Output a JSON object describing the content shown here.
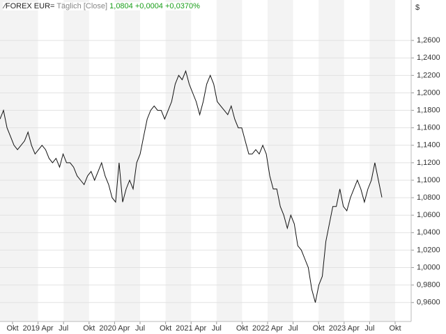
{
  "chart_data": {
    "type": "line",
    "title": "FOREX EUR=",
    "subtitle": "Täglich [Close]",
    "last_value": "1,0804",
    "change": "+0,0004",
    "change_pct": "+0,0370%",
    "y_unit": "$",
    "xtick_labels": [
      "Okt",
      "2019 Apr",
      "Jul",
      "Okt",
      "2020 Apr",
      "Jul",
      "Okt",
      "2021 Apr",
      "Jul",
      "Okt",
      "2022 Apr",
      "Jul",
      "Okt",
      "2023 Apr",
      "Jul",
      "Okt"
    ],
    "ylim": [
      0.9383,
      1.3063
    ],
    "yticks": [
      {
        "value": 0.96,
        "label": "0,9600"
      },
      {
        "value": 0.98,
        "label": "0,9800"
      },
      {
        "value": 1.0,
        "label": "1,0000"
      },
      {
        "value": 1.02,
        "label": "1,0200"
      },
      {
        "value": 1.04,
        "label": "1,0400"
      },
      {
        "value": 1.06,
        "label": "1,0600"
      },
      {
        "value": 1.08,
        "label": "1,0800"
      },
      {
        "value": 1.1,
        "label": "1,1000"
      },
      {
        "value": 1.12,
        "label": "1,1200"
      },
      {
        "value": 1.14,
        "label": "1,1400"
      },
      {
        "value": 1.16,
        "label": "1,1600"
      },
      {
        "value": 1.18,
        "label": "1,1800"
      },
      {
        "value": 1.2,
        "label": "1,2000"
      },
      {
        "value": 1.22,
        "label": "1,2200"
      },
      {
        "value": 1.24,
        "label": "1,2400"
      },
      {
        "value": 1.26,
        "label": "1,2600"
      }
    ],
    "grid": true,
    "series": [
      {
        "name": "EUR=",
        "color": "#111111",
        "values": [
          1.17,
          1.18,
          1.16,
          1.15,
          1.14,
          1.135,
          1.14,
          1.145,
          1.155,
          1.14,
          1.13,
          1.135,
          1.14,
          1.135,
          1.125,
          1.12,
          1.125,
          1.115,
          1.13,
          1.12,
          1.12,
          1.115,
          1.105,
          1.1,
          1.095,
          1.105,
          1.11,
          1.1,
          1.11,
          1.12,
          1.105,
          1.095,
          1.08,
          1.075,
          1.12,
          1.075,
          1.09,
          1.1,
          1.09,
          1.12,
          1.13,
          1.15,
          1.17,
          1.18,
          1.185,
          1.18,
          1.18,
          1.17,
          1.18,
          1.19,
          1.21,
          1.22,
          1.215,
          1.225,
          1.21,
          1.2,
          1.19,
          1.175,
          1.19,
          1.21,
          1.22,
          1.21,
          1.19,
          1.185,
          1.18,
          1.175,
          1.185,
          1.17,
          1.16,
          1.16,
          1.145,
          1.13,
          1.13,
          1.135,
          1.13,
          1.14,
          1.13,
          1.105,
          1.09,
          1.09,
          1.07,
          1.06,
          1.045,
          1.06,
          1.05,
          1.025,
          1.02,
          1.01,
          1.0,
          0.975,
          0.96,
          0.98,
          0.99,
          1.03,
          1.05,
          1.07,
          1.07,
          1.09,
          1.07,
          1.065,
          1.08,
          1.09,
          1.1,
          1.09,
          1.075,
          1.09,
          1.1,
          1.12,
          1.1,
          1.0804
        ]
      }
    ]
  }
}
